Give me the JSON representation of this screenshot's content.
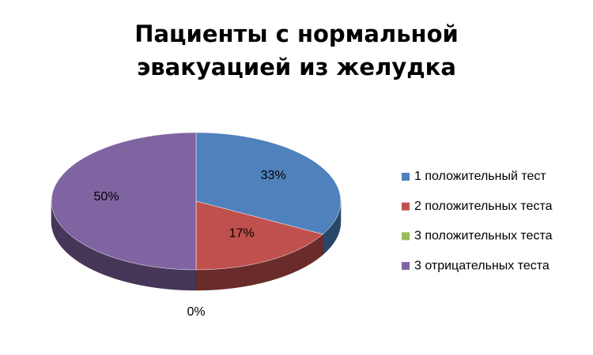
{
  "chart_data": {
    "type": "pie3d",
    "title": "Пациенты с нормальной эвакуацией из желудка",
    "categories": [
      "1 положительный тест",
      "2 положительных теста",
      "3 положительных теста",
      "3 отрицательных теста"
    ],
    "values": [
      33,
      17,
      0,
      50
    ],
    "value_labels": [
      "33%",
      "17%",
      "0%",
      "50%"
    ],
    "colors": [
      "#4f81bd",
      "#c0504d",
      "#9bbb59",
      "#8064a2"
    ],
    "legend": "right"
  }
}
